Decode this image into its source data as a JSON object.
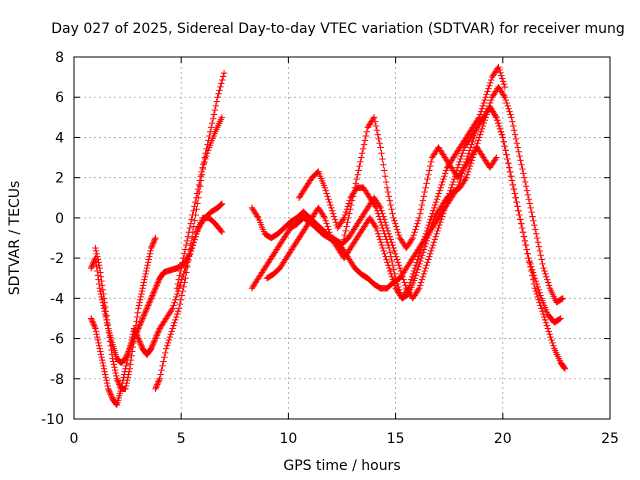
{
  "chart_data": {
    "type": "scatter",
    "title": "Day 027 of 2025, Sidereal Day-to-day VTEC variation (SDTVAR) for receiver mung",
    "xlabel": "GPS time / hours",
    "ylabel": "SDTVAR / TECUs",
    "xlim": [
      0,
      25
    ],
    "ylim": [
      -10,
      8
    ],
    "xticks": [
      0,
      5,
      10,
      15,
      20,
      25
    ],
    "yticks": [
      -10,
      -8,
      -6,
      -4,
      -2,
      0,
      2,
      4,
      6,
      8
    ],
    "grid": true,
    "marker": "+",
    "series_color": "#ff0000",
    "series": [
      {
        "x": [
          0.8,
          1.0,
          1.2,
          1.4,
          1.6,
          1.8,
          2.0,
          2.2,
          2.4,
          2.6,
          2.8,
          3.0,
          3.2,
          3.4,
          3.6,
          3.8,
          4.0,
          4.3,
          4.6,
          4.9,
          5.2,
          5.5,
          5.8,
          6.1,
          6.4,
          6.7,
          6.9
        ],
        "y": [
          -5.0,
          -5.5,
          -6.5,
          -7.5,
          -8.5,
          -9.0,
          -9.3,
          -8.5,
          -7.5,
          -6.5,
          -5.5,
          -6.0,
          -6.5,
          -6.8,
          -6.5,
          -6.0,
          -5.5,
          -5.0,
          -4.5,
          -3.5,
          -2.5,
          -1.5,
          -0.5,
          0.0,
          0.3,
          0.5,
          0.7
        ]
      },
      {
        "x": [
          0.8,
          1.0,
          1.2,
          1.4,
          1.6,
          1.8,
          2.0,
          2.2,
          2.4,
          2.6,
          2.8,
          3.0,
          3.2,
          3.4,
          3.6,
          3.8,
          4.0,
          4.2,
          4.5,
          4.8,
          5.1,
          5.4,
          5.7,
          6.0,
          6.3,
          6.6,
          6.9
        ],
        "y": [
          -2.5,
          -2.0,
          -3.5,
          -4.5,
          -5.5,
          -6.3,
          -7.0,
          -7.2,
          -7.0,
          -6.5,
          -6.0,
          -5.5,
          -5.0,
          -4.5,
          -4.0,
          -3.5,
          -3.0,
          -2.7,
          -2.6,
          -2.5,
          -2.3,
          -1.8,
          -0.8,
          0.0,
          0.0,
          -0.3,
          -0.7
        ]
      },
      {
        "x": [
          1.0,
          1.2,
          1.4,
          1.6,
          1.8,
          2.0,
          2.2,
          2.4,
          2.6,
          2.8,
          3.0,
          3.2,
          3.4,
          3.6,
          3.8
        ],
        "y": [
          -1.5,
          -2.5,
          -4.0,
          -5.5,
          -7.0,
          -8.0,
          -8.5,
          -8.5,
          -7.5,
          -6.0,
          -4.5,
          -3.5,
          -2.5,
          -1.5,
          -1.0
        ]
      },
      {
        "x": [
          3.8,
          4.0,
          4.3,
          4.6,
          4.9,
          5.2,
          5.5,
          5.8,
          6.1,
          6.4,
          6.7,
          7.0
        ],
        "y": [
          -8.5,
          -8.0,
          -6.5,
          -5.5,
          -4.5,
          -3.0,
          -1.0,
          1.0,
          3.0,
          4.5,
          6.0,
          7.2
        ]
      },
      {
        "x": [
          4.8,
          5.1,
          5.4,
          5.7,
          6.0,
          6.3,
          6.6,
          6.9
        ],
        "y": [
          -3.5,
          -2.0,
          -0.5,
          1.0,
          2.5,
          3.5,
          4.3,
          5.0
        ]
      },
      {
        "x": [
          8.3,
          8.6,
          8.9,
          9.2,
          9.5,
          9.8,
          10.1,
          10.4,
          10.7,
          11.0,
          11.3,
          11.6,
          11.9,
          12.2,
          12.5,
          12.8,
          13.1,
          13.4,
          13.7,
          14.0,
          14.3,
          14.6,
          14.9,
          15.2,
          15.5,
          15.8,
          16.1,
          16.4,
          16.7,
          17.0,
          17.3,
          17.6,
          17.9,
          18.2,
          18.5,
          18.8,
          19.1,
          19.4,
          19.7,
          20.0,
          20.3,
          20.6,
          20.9,
          21.2,
          21.5,
          21.8,
          22.1,
          22.4,
          22.7,
          22.9
        ],
        "y": [
          -3.5,
          -3.0,
          -2.5,
          -2.0,
          -1.5,
          -1.0,
          -0.5,
          -0.3,
          0.0,
          -0.2,
          -0.5,
          -0.8,
          -1.0,
          -1.2,
          -1.5,
          -2.0,
          -2.5,
          -2.8,
          -3.0,
          -3.3,
          -3.5,
          -3.5,
          -3.2,
          -3.0,
          -2.5,
          -2.0,
          -1.5,
          -1.0,
          -0.5,
          0.0,
          0.5,
          1.0,
          1.5,
          2.5,
          3.5,
          4.5,
          5.0,
          5.5,
          5.0,
          4.0,
          2.5,
          1.0,
          -0.5,
          -2.0,
          -3.5,
          -4.5,
          -5.5,
          -6.5,
          -7.2,
          -7.5
        ]
      },
      {
        "x": [
          8.3,
          8.6,
          8.9,
          9.2,
          9.5,
          9.8,
          10.1,
          10.4,
          10.7,
          11.0,
          11.3,
          11.6,
          11.9,
          12.2,
          12.5,
          12.8,
          13.1,
          13.4,
          13.7,
          14.0,
          14.3,
          14.6,
          14.9,
          15.2,
          15.5,
          15.8,
          16.1,
          16.4,
          16.7,
          17.0,
          17.3,
          17.6,
          17.9,
          18.2,
          18.5,
          18.8,
          19.1,
          19.4,
          19.7,
          20.0,
          20.3,
          20.6,
          20.9,
          21.2,
          21.5,
          21.8,
          22.1,
          22.4,
          22.7
        ],
        "y": [
          0.5,
          0.0,
          -0.8,
          -1.0,
          -0.8,
          -0.5,
          -0.2,
          0.0,
          0.3,
          0.0,
          -0.3,
          -0.6,
          -0.9,
          -1.1,
          -1.3,
          -1.0,
          -0.5,
          0.0,
          0.5,
          1.0,
          0.5,
          -0.5,
          -1.5,
          -2.5,
          -3.5,
          -4.0,
          -3.5,
          -2.5,
          -1.5,
          -0.5,
          0.5,
          1.5,
          2.5,
          3.5,
          4.0,
          4.5,
          5.0,
          5.5,
          5.0,
          4.0,
          2.5,
          1.0,
          -0.5,
          -2.0,
          -3.0,
          -4.0,
          -4.8,
          -5.2,
          -5.0
        ]
      },
      {
        "x": [
          9.0,
          9.3,
          9.6,
          9.9,
          10.2,
          10.5,
          10.8,
          11.1,
          11.4,
          11.7,
          12.0,
          12.3,
          12.6,
          12.9,
          13.2,
          13.5,
          13.8,
          14.1,
          14.4,
          14.7,
          15.0,
          15.3,
          15.6,
          15.9,
          16.2,
          16.5,
          16.8,
          17.1,
          17.4,
          17.7,
          18.0,
          18.3,
          18.6,
          18.9,
          19.2,
          19.5,
          19.8,
          20.1,
          20.4,
          20.7,
          21.0,
          21.3,
          21.6,
          21.9,
          22.2,
          22.5,
          22.8
        ],
        "y": [
          -3.0,
          -2.8,
          -2.5,
          -2.0,
          -1.5,
          -1.0,
          -0.5,
          0.0,
          0.5,
          0.0,
          -1.0,
          -1.5,
          -2.0,
          -1.5,
          -1.0,
          -0.5,
          0.0,
          -0.5,
          -1.5,
          -2.5,
          -3.5,
          -4.0,
          -3.8,
          -3.0,
          -2.0,
          -1.0,
          0.0,
          0.5,
          1.0,
          1.3,
          1.5,
          2.0,
          3.0,
          4.0,
          5.0,
          6.0,
          6.5,
          6.0,
          5.0,
          3.5,
          2.0,
          0.5,
          -1.0,
          -2.5,
          -3.5,
          -4.2,
          -4.0
        ]
      },
      {
        "x": [
          10.5,
          10.8,
          11.1,
          11.4,
          11.7,
          12.0,
          12.3,
          12.6,
          12.9,
          13.2,
          13.5,
          13.8,
          14.1,
          14.4,
          14.7,
          15.0,
          15.3,
          15.6,
          15.9,
          16.2,
          16.5,
          16.8,
          17.1,
          17.4,
          17.7,
          18.0,
          18.3,
          18.6,
          18.9,
          19.2,
          19.5,
          19.8,
          20.1
        ],
        "y": [
          1.0,
          1.5,
          2.0,
          2.3,
          1.5,
          0.5,
          -0.5,
          0.0,
          1.0,
          1.5,
          1.5,
          1.0,
          0.5,
          -0.5,
          -1.5,
          -3.0,
          -4.0,
          -3.5,
          -2.5,
          -1.5,
          -0.5,
          0.5,
          1.5,
          2.5,
          3.0,
          3.5,
          4.0,
          4.5,
          5.0,
          6.0,
          7.0,
          7.5,
          6.5
        ]
      },
      {
        "x": [
          12.5,
          12.8,
          13.1,
          13.4,
          13.7,
          14.0,
          14.3,
          14.6,
          14.9,
          15.2,
          15.5,
          15.8,
          16.1,
          16.4,
          16.7,
          17.0,
          17.3,
          17.6,
          17.9,
          18.2,
          18.5,
          18.8,
          19.1,
          19.4,
          19.7
        ],
        "y": [
          -1.5,
          0.0,
          1.5,
          3.0,
          4.5,
          5.0,
          3.5,
          1.5,
          0.0,
          -1.0,
          -1.5,
          -1.0,
          0.0,
          1.5,
          3.0,
          3.5,
          3.0,
          2.5,
          2.0,
          2.5,
          3.0,
          3.5,
          3.0,
          2.5,
          3.0
        ]
      }
    ]
  }
}
